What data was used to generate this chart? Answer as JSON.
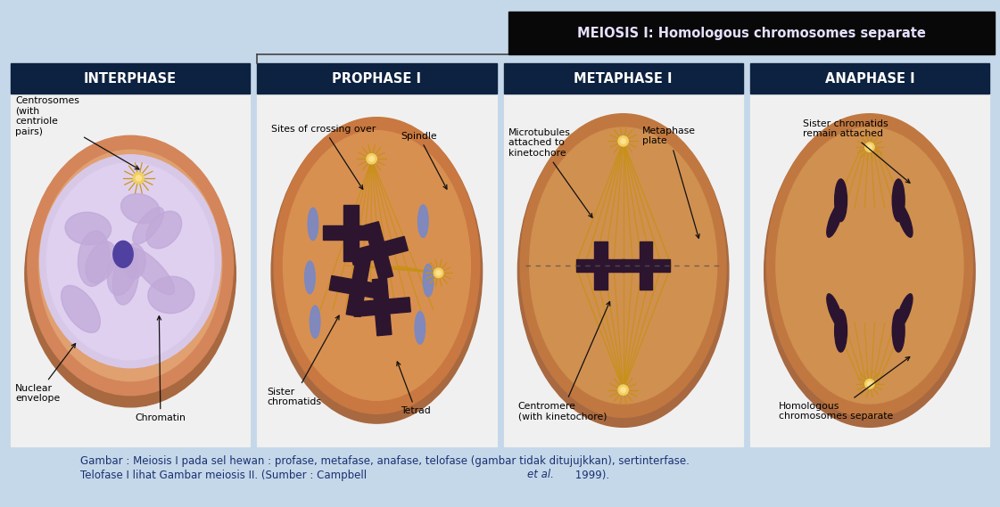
{
  "background_color": "#c5d8ea",
  "title_box_color": "#080808",
  "title_text": "MEIOSIS I: Homologous chromosomes separate",
  "title_text_color": "#e8e0ff",
  "panel_bg_color": "#f0f0f0",
  "panel_header_color": "#0d2240",
  "panel_header_text_color": "#ffffff",
  "panel_titles": [
    "INTERPHASE",
    "PROPHASE I",
    "METAPHASE I",
    "ANAPHASE I"
  ],
  "caption_line1": "Gambar : Meiosis I pada sel hewan : profase, metafase, anafase, telofase (gambar tidak ditujujkkan), sertinterfase.",
  "caption_line2": "Telofase I lihat Gambar meiosis II. (Sumber : Campbell ",
  "caption_line2_italic": "et al.",
  "caption_line2_end": " 1999).",
  "caption_color": "#1a3070",
  "fig_width": 11.21,
  "fig_height": 5.69,
  "dpi": 100
}
